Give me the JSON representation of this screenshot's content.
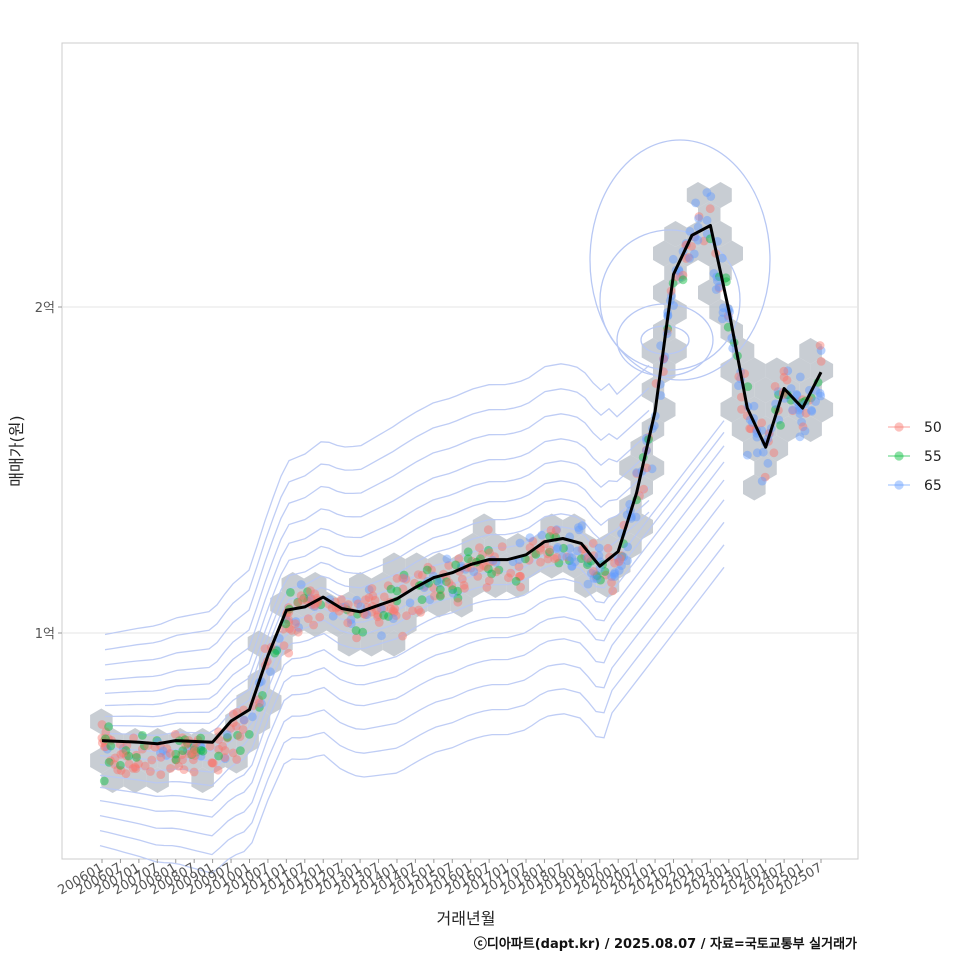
{
  "chart_data": {
    "type": "scatter",
    "xlabel": "거래년월",
    "ylabel": "매매가(원)",
    "caption": "ⓒ디아파트(dapt.kr) / 2025.08.07 / 자료=국토교통부 실거래가",
    "x_ticks": [
      "200601",
      "200607",
      "200701",
      "200707",
      "200801",
      "200807",
      "200901",
      "200907",
      "201001",
      "201007",
      "201101",
      "201107",
      "201201",
      "201207",
      "201301",
      "201307",
      "201401",
      "201407",
      "201501",
      "201507",
      "201601",
      "201607",
      "201701",
      "201707",
      "201801",
      "201807",
      "201901",
      "201907",
      "202001",
      "202007",
      "202101",
      "202107",
      "202201",
      "202207",
      "202301",
      "202307",
      "202401",
      "202407",
      "202501",
      "202507"
    ],
    "y_ticks": [
      {
        "value": 100000000,
        "label": "1억"
      },
      {
        "value": 200000000,
        "label": "2억"
      }
    ],
    "ylim": [
      27000000,
      285000000
    ],
    "grid": true,
    "legend_position": "right",
    "legend": [
      {
        "name": "50",
        "color": "#F8766D"
      },
      {
        "name": "55",
        "color": "#00BA38"
      },
      {
        "name": "65",
        "color": "#619CFF"
      }
    ],
    "moving_average": [
      {
        "x": "200601",
        "y": 67000000
      },
      {
        "x": "200701",
        "y": 66500000
      },
      {
        "x": "200707",
        "y": 66000000
      },
      {
        "x": "200801",
        "y": 67000000
      },
      {
        "x": "200901",
        "y": 66500000
      },
      {
        "x": "200907",
        "y": 73000000
      },
      {
        "x": "201001",
        "y": 76500000
      },
      {
        "x": "201007",
        "y": 93000000
      },
      {
        "x": "201101",
        "y": 107000000
      },
      {
        "x": "201107",
        "y": 108000000
      },
      {
        "x": "201201",
        "y": 111000000
      },
      {
        "x": "201207",
        "y": 107500000
      },
      {
        "x": "201301",
        "y": 106500000
      },
      {
        "x": "201307",
        "y": 108500000
      },
      {
        "x": "201401",
        "y": 110500000
      },
      {
        "x": "201407",
        "y": 114000000
      },
      {
        "x": "201501",
        "y": 117000000
      },
      {
        "x": "201507",
        "y": 118500000
      },
      {
        "x": "201601",
        "y": 121000000
      },
      {
        "x": "201607",
        "y": 122500000
      },
      {
        "x": "201701",
        "y": 122500000
      },
      {
        "x": "201707",
        "y": 124000000
      },
      {
        "x": "201801",
        "y": 128000000
      },
      {
        "x": "201807",
        "y": 129000000
      },
      {
        "x": "201901",
        "y": 127500000
      },
      {
        "x": "201907",
        "y": 120500000
      },
      {
        "x": "202001",
        "y": 125000000
      },
      {
        "x": "202007",
        "y": 143000000
      },
      {
        "x": "202101",
        "y": 168000000
      },
      {
        "x": "202107",
        "y": 210000000
      },
      {
        "x": "202201",
        "y": 222000000
      },
      {
        "x": "202207",
        "y": 225000000
      },
      {
        "x": "202301",
        "y": 199000000
      },
      {
        "x": "202307",
        "y": 169000000
      },
      {
        "x": "202401",
        "y": 157000000
      },
      {
        "x": "202407",
        "y": 175000000
      },
      {
        "x": "202501",
        "y": 169000000
      },
      {
        "x": "202507",
        "y": 180000000
      }
    ]
  }
}
